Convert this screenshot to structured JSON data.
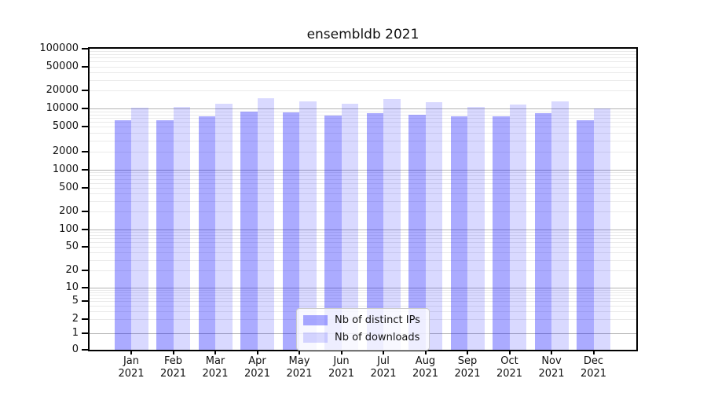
{
  "title": "ensembldb 2021",
  "chart_data": {
    "type": "bar",
    "title": "ensembldb 2021",
    "categories": [
      "Jan",
      "Feb",
      "Mar",
      "Apr",
      "May",
      "Jun",
      "Jul",
      "Aug",
      "Sep",
      "Oct",
      "Nov",
      "Dec"
    ],
    "year": "2021",
    "series": [
      {
        "name": "Nb of distinct IPs",
        "color": "rgba(0,0,255,0.33)",
        "values": [
          6400,
          6450,
          7450,
          8800,
          8600,
          7650,
          8500,
          7800,
          7400,
          7550,
          8400,
          6350
        ]
      },
      {
        "name": "Nb of downloads",
        "color": "rgba(0,0,255,0.15)",
        "values": [
          10300,
          10500,
          12100,
          14700,
          13300,
          12000,
          14400,
          12700,
          10700,
          11800,
          13300,
          9900
        ]
      }
    ],
    "xlabel": "",
    "ylabel": "",
    "y_scale": "symlog",
    "ylim": [
      0,
      100000
    ],
    "y_ticks": [
      0,
      1,
      2,
      5,
      10,
      20,
      50,
      100,
      200,
      500,
      1000,
      2000,
      5000,
      10000,
      20000,
      50000,
      100000
    ],
    "grid": true,
    "legend_position": "lower-center"
  }
}
